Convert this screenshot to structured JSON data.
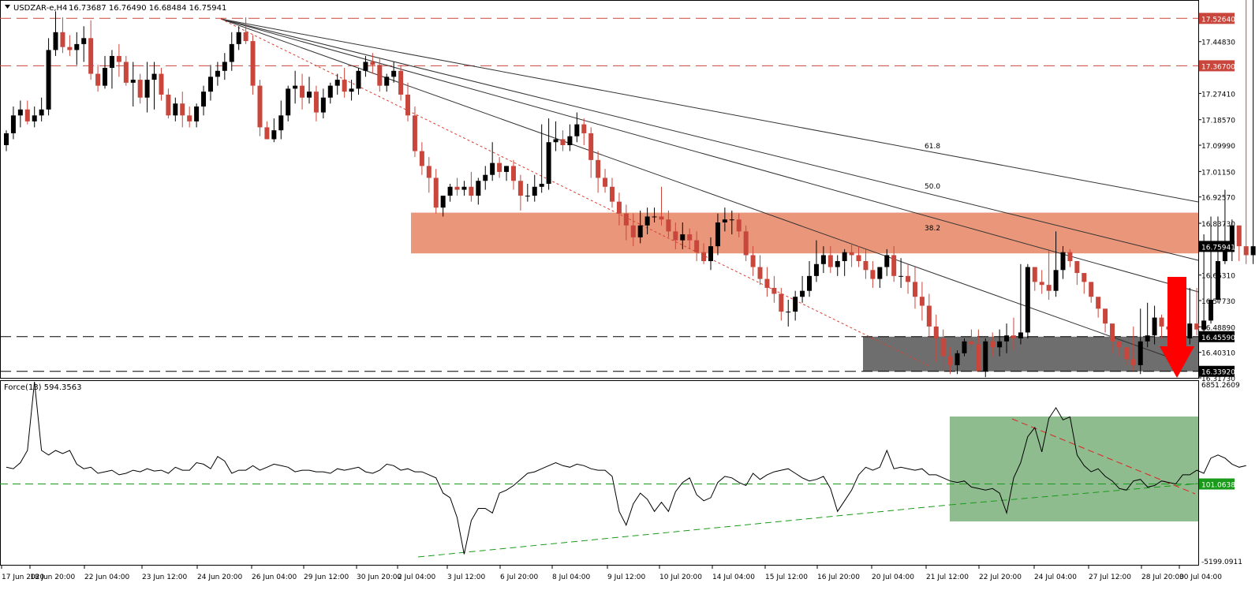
{
  "header": {
    "symbol": "USDZAR-e,H4",
    "ohlc": "16.73687 16.76490 16.68484 16.75941"
  },
  "indicator": {
    "label": "Force(13) 594.3563",
    "ymax_label": "6851.2609",
    "ymin_label": "-5199.0911",
    "level_label": "101.0638"
  },
  "colors": {
    "bull": "#000000",
    "bear": "#c8463c",
    "resistance_zone": "#e9967a",
    "support_zone": "#6e6e6e",
    "green_zone": "#8fbc8f",
    "level_line": "#c8463c",
    "arrow": "#ff0000"
  },
  "icons": {
    "forecast": "down-arrow-icon"
  },
  "chart_data": {
    "type": "candlestick",
    "title": "USDZAR-e,H4",
    "ylim": [
      16.3173,
      17.5856
    ],
    "y_ticks": [
      "17.44830",
      "17.27410",
      "17.18570",
      "17.09990",
      "17.01150",
      "16.92570",
      "16.83730",
      "16.66310",
      "16.57730",
      "16.48890",
      "16.40310",
      "16.31730"
    ],
    "x_ticks": [
      "17 Jun 2020",
      "18 Jun 20:00",
      "22 Jun 04:00",
      "23 Jun 12:00",
      "24 Jun 20:00",
      "26 Jun 04:00",
      "29 Jun 12:00",
      "30 Jun 20:00",
      "2 Jul 04:00",
      "3 Jul 12:00",
      "6 Jul 20:00",
      "8 Jul 04:00",
      "9 Jul 12:00",
      "10 Jul 20:00",
      "14 Jul 04:00",
      "15 Jul 12:00",
      "16 Jul 20:00",
      "20 Jul 04:00",
      "21 Jul 12:00",
      "22 Jul 20:00",
      "24 Jul 04:00",
      "27 Jul 12:00",
      "28 Jul 20:00",
      "30 Jul 04:00"
    ],
    "levels": [
      {
        "value": 17.5264,
        "label": "17.52640",
        "style": "dashed-red"
      },
      {
        "value": 17.367,
        "label": "17.36700",
        "style": "dashed-red"
      },
      {
        "value": 16.4559,
        "label": "16.45590",
        "style": "dashed-black"
      },
      {
        "value": 16.3392,
        "label": "16.33920",
        "style": "dashed-black"
      }
    ],
    "current_price": {
      "value": 16.75941,
      "label": "16.75941"
    },
    "zones": [
      {
        "name": "resistance",
        "from": 16.736,
        "to": 16.873
      },
      {
        "name": "support",
        "from": 16.3392,
        "to": 16.4559
      }
    ],
    "fib_labels": [
      "61.8",
      "50.0",
      "38.2"
    ],
    "candles_open": [
      17.1,
      17.14,
      17.2,
      17.22,
      17.18,
      17.2,
      17.22,
      17.42,
      17.48,
      17.43,
      17.42,
      17.44,
      17.46,
      17.34,
      17.3,
      17.36,
      17.4,
      17.38,
      17.31,
      17.32,
      17.26,
      17.32,
      17.34,
      17.27,
      17.2,
      17.24,
      17.2,
      17.18,
      17.23,
      17.28,
      17.33,
      17.35,
      17.38,
      17.44,
      17.48,
      17.45,
      17.3,
      17.16,
      17.12,
      17.15,
      17.2,
      17.29,
      17.3,
      17.26,
      17.28,
      17.21,
      17.26,
      17.3,
      17.32,
      17.28,
      17.29,
      17.35,
      17.38,
      17.37,
      17.3,
      17.33,
      17.35,
      17.27,
      17.2,
      17.08,
      17.03,
      16.99,
      16.89,
      16.93,
      16.96,
      16.95,
      16.96,
      16.93,
      16.98,
      17.0,
      17.04,
      17.01,
      17.03,
      16.98,
      16.93,
      16.93,
      16.96,
      16.97,
      17.11,
      17.12,
      17.1,
      17.13,
      17.17,
      17.14,
      17.05,
      16.99,
      16.96,
      16.91,
      16.87,
      16.83,
      16.79,
      16.83,
      16.86,
      16.86,
      16.85,
      16.81,
      16.78,
      16.8,
      16.78,
      16.74,
      16.71,
      16.76,
      16.84,
      16.85,
      16.85,
      16.81,
      16.73,
      16.69,
      16.65,
      16.62,
      16.6,
      16.54,
      16.54,
      16.59,
      16.61,
      16.66,
      16.7,
      16.73,
      16.69,
      16.71,
      16.74,
      16.73,
      16.71,
      16.68,
      16.65,
      16.69,
      16.73,
      16.66,
      16.66,
      16.64,
      16.59,
      16.56,
      16.49,
      16.45,
      16.39,
      16.36,
      16.4,
      16.44,
      16.43,
      16.34,
      16.44,
      16.42,
      16.44,
      16.46,
      16.45,
      16.47,
      16.69,
      16.64,
      16.63,
      16.61,
      16.68,
      16.74,
      16.71,
      16.67,
      16.64,
      16.59,
      16.55,
      16.5,
      16.44,
      16.42,
      16.38,
      16.36,
      16.44,
      16.46,
      16.52,
      16.49,
      16.48,
      16.46,
      16.45,
      16.5,
      16.48,
      16.51,
      16.58,
      16.71,
      16.77,
      16.83,
      16.76,
      16.73
    ],
    "candles_high": [
      17.15,
      17.23,
      17.25,
      17.25,
      17.23,
      17.26,
      17.46,
      17.55,
      17.53,
      17.47,
      17.48,
      17.5,
      17.52,
      17.37,
      17.4,
      17.42,
      17.44,
      17.4,
      17.38,
      17.34,
      17.38,
      17.38,
      17.36,
      17.29,
      17.26,
      17.28,
      17.23,
      17.24,
      17.3,
      17.37,
      17.38,
      17.41,
      17.48,
      17.5,
      17.53,
      17.47,
      17.32,
      17.18,
      17.19,
      17.25,
      17.3,
      17.35,
      17.34,
      17.33,
      17.3,
      17.29,
      17.31,
      17.34,
      17.36,
      17.32,
      17.36,
      17.4,
      17.41,
      17.39,
      17.34,
      17.38,
      17.37,
      17.31,
      17.23,
      17.11,
      17.06,
      17.02,
      16.93,
      16.97,
      16.99,
      16.98,
      17.01,
      16.99,
      17.03,
      17.11,
      17.06,
      17.03,
      17.05,
      17.0,
      16.97,
      17.0,
      17.17,
      17.19,
      17.18,
      17.15,
      17.17,
      17.21,
      17.19,
      17.16,
      17.08,
      17.02,
      16.99,
      16.94,
      16.9,
      16.87,
      16.88,
      16.89,
      16.89,
      16.96,
      16.88,
      16.84,
      16.84,
      16.82,
      16.81,
      16.77,
      16.79,
      16.87,
      16.89,
      16.88,
      16.87,
      16.83,
      16.76,
      16.73,
      16.69,
      16.66,
      16.62,
      16.58,
      16.61,
      16.66,
      16.71,
      16.78,
      16.76,
      16.76,
      16.73,
      16.75,
      16.77,
      16.76,
      16.75,
      16.71,
      16.69,
      16.75,
      16.76,
      16.72,
      16.7,
      16.69,
      16.64,
      16.6,
      16.53,
      16.48,
      16.42,
      16.41,
      16.45,
      16.48,
      16.48,
      16.45,
      16.47,
      16.48,
      16.5,
      16.52,
      16.7,
      16.7,
      16.69,
      16.68,
      16.75,
      16.81,
      16.76,
      16.75,
      16.7,
      16.66,
      16.62,
      16.57,
      16.52,
      16.47,
      16.43,
      16.41,
      16.49,
      16.55,
      16.57,
      16.56,
      16.53,
      16.51,
      16.52,
      16.53,
      16.62,
      16.62,
      16.8,
      16.86,
      16.86,
      16.95,
      16.85,
      16.76
    ],
    "candles_low": [
      17.08,
      17.12,
      17.16,
      17.17,
      17.16,
      17.18,
      17.2,
      17.4,
      17.41,
      17.4,
      17.37,
      17.38,
      17.32,
      17.28,
      17.29,
      17.29,
      17.33,
      17.3,
      17.23,
      17.24,
      17.21,
      17.22,
      17.25,
      17.19,
      17.18,
      17.16,
      17.16,
      17.16,
      17.2,
      17.25,
      17.3,
      17.32,
      17.35,
      17.42,
      17.44,
      17.27,
      17.13,
      17.12,
      17.11,
      17.12,
      17.18,
      17.24,
      17.22,
      17.24,
      17.18,
      17.19,
      17.24,
      17.27,
      17.26,
      17.25,
      17.27,
      17.33,
      17.34,
      17.28,
      17.28,
      17.31,
      17.25,
      17.18,
      17.06,
      17.0,
      16.94,
      16.87,
      16.86,
      16.91,
      16.93,
      16.93,
      16.91,
      16.9,
      16.95,
      16.98,
      16.99,
      16.98,
      16.95,
      16.88,
      16.91,
      16.91,
      16.94,
      16.95,
      17.08,
      17.08,
      17.08,
      17.11,
      17.1,
      16.99,
      16.94,
      16.94,
      16.89,
      16.83,
      16.78,
      16.76,
      16.77,
      16.8,
      16.84,
      16.83,
      16.79,
      16.75,
      16.75,
      16.75,
      16.71,
      16.7,
      16.68,
      16.73,
      16.81,
      16.8,
      16.79,
      16.71,
      16.66,
      16.63,
      16.59,
      16.57,
      16.51,
      16.49,
      16.51,
      16.57,
      16.59,
      16.64,
      16.67,
      16.67,
      16.66,
      16.66,
      16.69,
      16.69,
      16.65,
      16.62,
      16.62,
      16.66,
      16.64,
      16.62,
      16.6,
      16.55,
      16.51,
      16.45,
      16.37,
      16.34,
      16.33,
      16.33,
      16.39,
      16.41,
      16.34,
      16.32,
      16.39,
      16.39,
      16.4,
      16.41,
      16.43,
      16.45,
      16.61,
      16.6,
      16.58,
      16.59,
      16.65,
      16.69,
      16.63,
      16.6,
      16.57,
      16.52,
      16.47,
      16.4,
      16.39,
      16.36,
      16.34,
      16.33,
      16.42,
      16.43,
      16.45,
      16.46,
      16.44,
      16.38,
      16.43,
      16.46,
      16.47,
      16.5,
      16.57,
      16.7,
      16.71,
      16.71,
      16.7,
      16.7
    ],
    "candles_close": [
      17.14,
      17.2,
      17.22,
      17.18,
      17.2,
      17.22,
      17.42,
      17.48,
      17.43,
      17.42,
      17.44,
      17.46,
      17.34,
      17.3,
      17.36,
      17.4,
      17.38,
      17.31,
      17.32,
      17.26,
      17.32,
      17.34,
      17.27,
      17.2,
      17.24,
      17.2,
      17.18,
      17.23,
      17.28,
      17.33,
      17.35,
      17.38,
      17.44,
      17.48,
      17.45,
      17.3,
      17.16,
      17.12,
      17.15,
      17.2,
      17.29,
      17.3,
      17.26,
      17.28,
      17.21,
      17.26,
      17.3,
      17.32,
      17.28,
      17.29,
      17.35,
      17.38,
      17.37,
      17.3,
      17.33,
      17.35,
      17.27,
      17.2,
      17.08,
      17.03,
      16.99,
      16.89,
      16.93,
      16.96,
      16.95,
      16.96,
      16.93,
      16.98,
      17.0,
      17.04,
      17.01,
      17.03,
      16.98,
      16.93,
      16.93,
      16.96,
      16.97,
      17.11,
      17.12,
      17.1,
      17.13,
      17.17,
      17.14,
      17.05,
      16.99,
      16.96,
      16.91,
      16.87,
      16.83,
      16.79,
      16.83,
      16.86,
      16.86,
      16.85,
      16.81,
      16.78,
      16.8,
      16.78,
      16.74,
      16.71,
      16.76,
      16.84,
      16.85,
      16.85,
      16.81,
      16.73,
      16.69,
      16.65,
      16.62,
      16.6,
      16.54,
      16.54,
      16.59,
      16.61,
      16.66,
      16.7,
      16.73,
      16.69,
      16.71,
      16.74,
      16.73,
      16.71,
      16.68,
      16.65,
      16.69,
      16.73,
      16.66,
      16.66,
      16.64,
      16.59,
      16.56,
      16.49,
      16.45,
      16.39,
      16.36,
      16.4,
      16.44,
      16.43,
      16.34,
      16.44,
      16.42,
      16.44,
      16.46,
      16.45,
      16.47,
      16.69,
      16.64,
      16.63,
      16.61,
      16.68,
      16.74,
      16.71,
      16.67,
      16.64,
      16.59,
      16.55,
      16.5,
      16.44,
      16.42,
      16.38,
      16.36,
      16.44,
      16.46,
      16.52,
      16.49,
      16.48,
      16.46,
      16.45,
      16.5,
      16.48,
      16.51,
      16.58,
      16.71,
      16.77,
      16.83,
      16.76,
      16.73,
      16.76
    ],
    "force_index": [
      1200,
      1100,
      1500,
      2300,
      6800,
      2300,
      2000,
      2300,
      2100,
      2300,
      1400,
      1100,
      1200,
      800,
      900,
      1000,
      700,
      800,
      1000,
      900,
      1100,
      950,
      1000,
      800,
      1200,
      1000,
      1000,
      1500,
      1400,
      1100,
      1900,
      1600,
      800,
      1000,
      1000,
      1300,
      1000,
      1200,
      1400,
      1300,
      1200,
      900,
      1000,
      1000,
      900,
      900,
      800,
      1100,
      1000,
      1100,
      1200,
      900,
      800,
      1000,
      1400,
      1300,
      1000,
      1100,
      900,
      900,
      700,
      500,
      -500,
      -800,
      -2100,
      -4500,
      -2300,
      -1500,
      -1500,
      -1800,
      -500,
      -300,
      0,
      400,
      800,
      900,
      1100,
      1300,
      1500,
      1300,
      1200,
      1400,
      1300,
      1100,
      1000,
      1000,
      600,
      -1700,
      -2600,
      -1200,
      -500,
      -900,
      -1700,
      -1100,
      -1700,
      -400,
      200,
      500,
      -600,
      -1000,
      -800,
      200,
      600,
      500,
      200,
      0,
      800,
      400,
      700,
      900,
      1000,
      1100,
      800,
      500,
      300,
      400,
      600,
      -200,
      -1700,
      -1000,
      -300,
      700,
      1200,
      1000,
      1200,
      2300,
      1100,
      1200,
      1100,
      1000,
      1100,
      700,
      700,
      500,
      300,
      200,
      300,
      -100,
      -200,
      -300,
      -200,
      -500,
      -1800,
      500,
      1500,
      3200,
      3800,
      2200,
      4400,
      5100,
      4300,
      4500,
      2000,
      1300,
      900,
      1100,
      600,
      300,
      -200,
      -300,
      300,
      400,
      -100,
      0,
      300,
      200,
      100,
      700,
      700,
      1000,
      800,
      1800,
      2000,
      1800,
      1400,
      1200,
      1300
    ]
  }
}
